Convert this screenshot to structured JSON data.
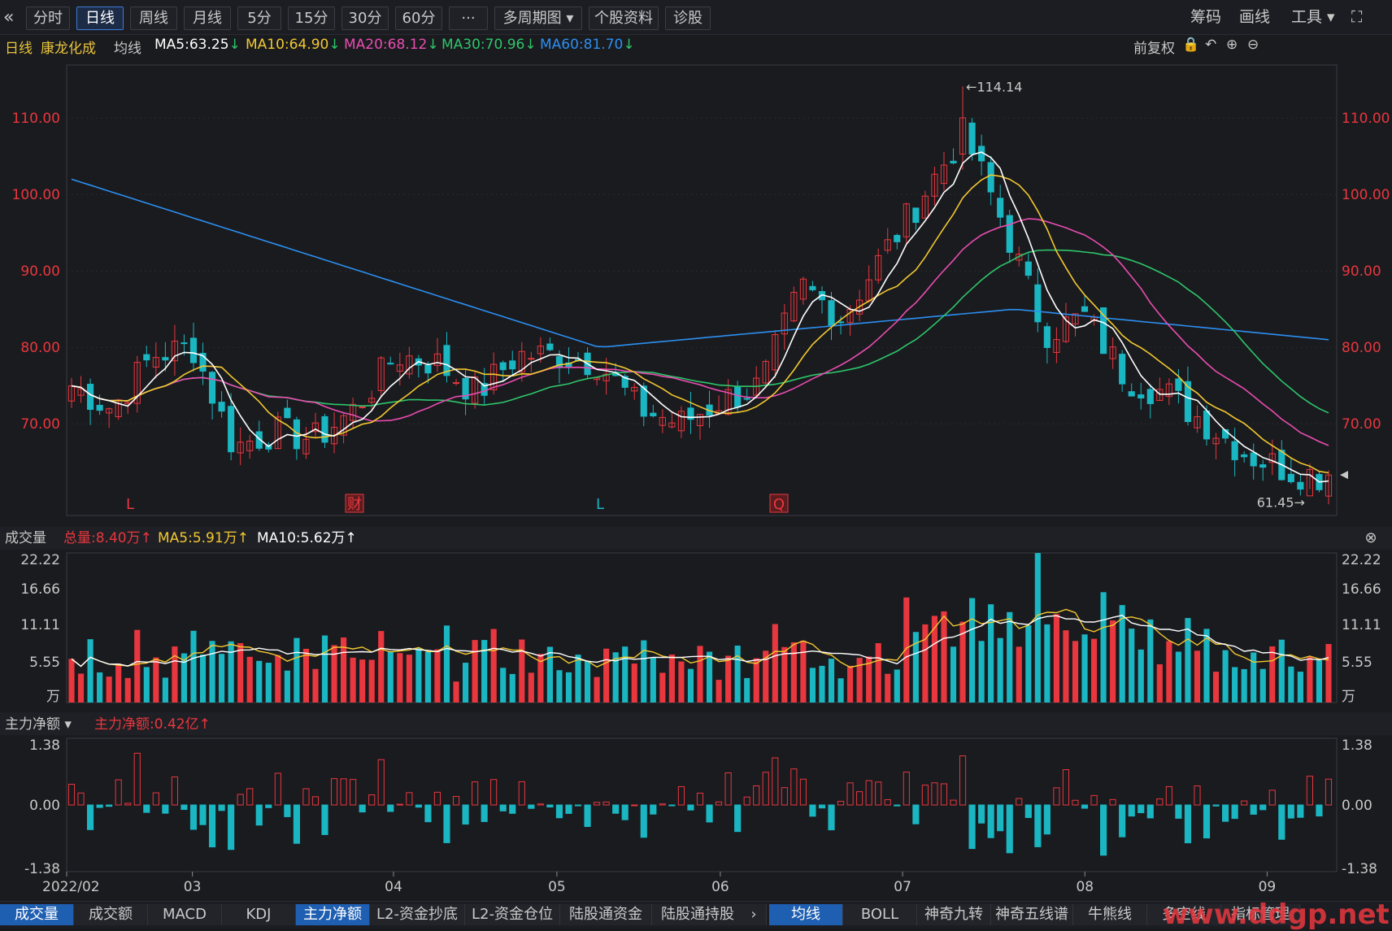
{
  "colors": {
    "up": "#e8373e",
    "down": "#1ab6c2",
    "ma5": "#ffffff",
    "ma10": "#f2c830",
    "ma20": "#e94db0",
    "ma30": "#2ec56a",
    "ma60": "#2c8ff0"
  },
  "toolbar": {
    "back_icon": "«",
    "period_buttons": [
      "分时",
      "日线",
      "周线",
      "月线",
      "5分",
      "15分",
      "30分",
      "60分",
      "···",
      "多周期图 ▾",
      "个股资料",
      "诊股"
    ],
    "active": "日线",
    "right_items": [
      "筹码",
      "画线",
      "工具 ▾"
    ],
    "fullscreen_icon": "⛶"
  },
  "info": {
    "period": "日线",
    "stock": "康龙化成",
    "ma_label": "均线",
    "ma5": "MA5:63.25",
    "ma10": "MA10:64.90",
    "ma20": "MA20:68.12",
    "ma30": "MA30:70.96",
    "ma60": "MA60:81.70",
    "adjust": "前复权"
  },
  "price_panel": {
    "high_label": "114.14",
    "low_label": "61.45",
    "markers": [
      "L",
      "财",
      "L",
      "Q"
    ]
  },
  "volume_panel": {
    "title": "成交量",
    "total": "总量:8.40万",
    "ma5": "MA5:5.91万",
    "ma10": "MA10:5.62万",
    "unit": "万"
  },
  "flow_panel": {
    "title": "主力净额 ▾",
    "value": "主力净额:0.42亿"
  },
  "bottom_tabs_left": [
    "成交量",
    "成交额",
    "MACD",
    "KDJ",
    "主力净额",
    "L2-资金抄底",
    "L2-资金仓位",
    "陆股通资金",
    "陆股通持股"
  ],
  "bottom_tabs_right": [
    "均线",
    "BOLL",
    "神奇九转",
    "神奇五线谱",
    "牛熊线",
    "多空线",
    "指标管理"
  ],
  "watermark": "www.ddgp.net",
  "chart_data": {
    "type": "candlestick",
    "x_labels": [
      "2022/02",
      "03",
      "04",
      "05",
      "06",
      "07",
      "08",
      "09"
    ],
    "y_ticks_price": [
      70,
      80,
      90,
      100,
      110
    ],
    "y_ticks_price_labels": [
      "70.00",
      "80.00",
      "90.00",
      "100.00",
      "110.00"
    ],
    "y_ticks_volume": [
      "22.22",
      "16.66",
      "11.11",
      "5.55",
      "万"
    ],
    "y_ticks_flow": [
      "1.38",
      "0.00",
      "-1.38"
    ],
    "price_range": [
      58,
      118
    ],
    "volume_max": 22.22,
    "flow_range": [
      -1.38,
      1.38
    ],
    "high": 114.14,
    "low": 61.45,
    "last_close": 63.3,
    "key_closes": [
      75,
      72,
      79,
      80,
      67,
      69,
      68,
      72,
      79,
      78,
      74,
      79,
      79,
      78,
      72,
      70,
      73,
      75,
      88,
      84,
      92,
      100,
      108,
      96,
      82,
      84,
      76,
      74,
      70,
      66,
      64,
      63
    ]
  }
}
